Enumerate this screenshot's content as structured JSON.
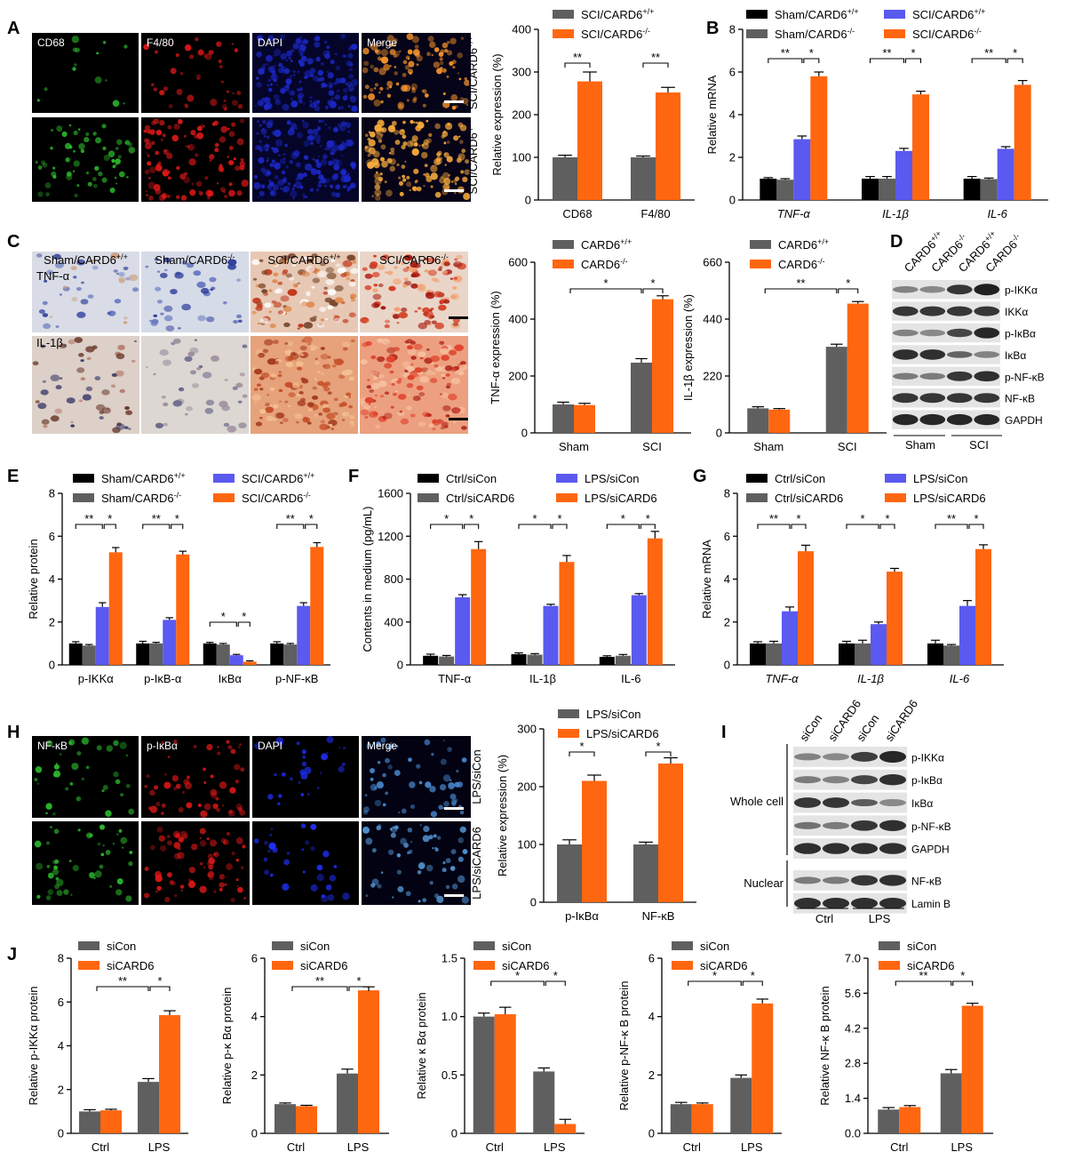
{
  "colors": {
    "black": "#000000",
    "gray": "#5f5f5f",
    "blue": "#5a5af0",
    "orange": "#ff6610",
    "green": "#2ec12e",
    "red": "#e01818",
    "dapi": "#1c28c8"
  },
  "panels": {
    "A": "A",
    "B": "B",
    "C": "C",
    "D": "D",
    "E": "E",
    "F": "F",
    "G": "G",
    "H": "H",
    "I": "I",
    "J": "J"
  },
  "micrographs": {
    "A": {
      "channels": [
        "CD68",
        "F4/80",
        "DAPI",
        "Merge"
      ],
      "rows": [
        "SCI/CARD6+/+",
        "SCI/CARD6-/-"
      ]
    },
    "C": {
      "columns": [
        "Sham/CARD6+/+",
        "Sham/CARD6-/-",
        "SCI/CARD6+/+",
        "SCI/CARD6-/-"
      ],
      "rows": [
        "TNF-α",
        "IL-1β"
      ]
    },
    "H": {
      "channels": [
        "NF-κB",
        "p-IκBα",
        "DAPI",
        "Merge"
      ],
      "rows": [
        "LPS/siCon",
        "LPS/siCARD6"
      ]
    }
  },
  "blots": {
    "D": {
      "lanes": [
        "CARD6+/+",
        "CARD6-/-",
        "CARD6+/+",
        "CARD6-/-"
      ],
      "bands": [
        "p-IKKα",
        "IKKα",
        "p-IκBα",
        "IκBα",
        "p-NF-κB",
        "NF-κB",
        "GAPDH"
      ],
      "groups": [
        "Sham",
        "SCI"
      ]
    },
    "I": {
      "lanes": [
        "siCon",
        "siCARD6",
        "siCon",
        "siCARD6"
      ],
      "bands": [
        "p-IKKα",
        "p-IκBα",
        "IκBα",
        "p-NF-κB",
        "GAPDH",
        "NF-κB",
        "Lamin B"
      ],
      "fractions": [
        "Whole cell",
        "Nuclear"
      ],
      "groups": [
        "Ctrl",
        "LPS"
      ]
    }
  },
  "chart_data": [
    {
      "id": "A",
      "type": "bar",
      "categories": [
        "CD68",
        "F4/80"
      ],
      "series": [
        {
          "name": "SCI/CARD6+/+",
          "values": [
            100,
            100
          ],
          "errors": [
            5,
            3
          ]
        },
        {
          "name": "SCI/CARD6-/-",
          "values": [
            278,
            252
          ],
          "errors": [
            22,
            12
          ]
        }
      ],
      "ylabel": "Relative expression (%)",
      "ylim": [
        0,
        400
      ],
      "yticks": [
        0,
        100,
        200,
        300,
        400
      ],
      "annotations": [
        "**",
        "**"
      ]
    },
    {
      "id": "B",
      "type": "bar",
      "categories": [
        "TNF-α",
        "IL-1β",
        "IL-6"
      ],
      "series": [
        {
          "name": "Sham/CARD6+/+",
          "values": [
            1.0,
            1.0,
            1.0
          ],
          "errors": [
            0.05,
            0.1,
            0.1
          ]
        },
        {
          "name": "Sham/CARD6-/-",
          "values": [
            0.95,
            1.0,
            0.98
          ],
          "errors": [
            0.05,
            0.1,
            0.05
          ]
        },
        {
          "name": "SCI/CARD6+/+",
          "values": [
            2.85,
            2.3,
            2.4
          ],
          "errors": [
            0.15,
            0.12,
            0.1
          ]
        },
        {
          "name": "SCI/CARD6-/-",
          "values": [
            5.8,
            4.95,
            5.4
          ],
          "errors": [
            0.2,
            0.15,
            0.2
          ]
        }
      ],
      "ylabel": "Relative mRNA",
      "ylim": [
        0,
        8
      ],
      "yticks": [
        0,
        2,
        4,
        6,
        8
      ],
      "annotations": [
        "**",
        "*",
        "**",
        "*",
        "**",
        "*"
      ]
    },
    {
      "id": "C1",
      "type": "bar",
      "categories": [
        "Sham",
        "SCI"
      ],
      "series": [
        {
          "name": "CARD6+/+",
          "values": [
            100,
            247
          ],
          "errors": [
            8,
            14
          ]
        },
        {
          "name": "CARD6-/-",
          "values": [
            98,
            470
          ],
          "errors": [
            6,
            12
          ]
        }
      ],
      "ylabel": "TNF-α expression (%)",
      "ylim": [
        0,
        600
      ],
      "yticks": [
        0,
        200,
        400,
        600
      ],
      "annotations": [
        "*",
        "*"
      ]
    },
    {
      "id": "C2",
      "type": "bar",
      "categories": [
        "Sham",
        "SCI"
      ],
      "series": [
        {
          "name": "CARD6+/+",
          "values": [
            95,
            333
          ],
          "errors": [
            6,
            10
          ]
        },
        {
          "name": "CARD6-/-",
          "values": [
            90,
            500
          ],
          "errors": [
            4,
            8
          ]
        }
      ],
      "ylabel": "IL-1β expression (%)",
      "ylim": [
        0,
        660
      ],
      "yticks": [
        0,
        220,
        440,
        660
      ],
      "annotations": [
        "**",
        "*"
      ]
    },
    {
      "id": "E",
      "type": "bar",
      "categories": [
        "p-IKKα",
        "p-IκB-α",
        "IκBα",
        "p-NF-κB"
      ],
      "series": [
        {
          "name": "Sham/CARD6+/+",
          "values": [
            1.0,
            1.0,
            1.0,
            1.0
          ],
          "errors": [
            0.08,
            0.1,
            0.05,
            0.08
          ]
        },
        {
          "name": "Sham/CARD6-/-",
          "values": [
            0.9,
            1.0,
            0.95,
            0.95
          ],
          "errors": [
            0.05,
            0.05,
            0.05,
            0.05
          ]
        },
        {
          "name": "SCI/CARD6+/+",
          "values": [
            2.7,
            2.1,
            0.45,
            2.75
          ],
          "errors": [
            0.2,
            0.1,
            0.04,
            0.15
          ]
        },
        {
          "name": "SCI/CARD6-/-",
          "values": [
            5.25,
            5.15,
            0.15,
            5.5
          ],
          "errors": [
            0.22,
            0.15,
            0.04,
            0.2
          ]
        }
      ],
      "ylabel": "Relative protein",
      "ylim": [
        0,
        8
      ],
      "yticks": [
        0,
        2,
        4,
        6,
        8
      ],
      "annotations": [
        "**",
        "*",
        "**",
        "*",
        "*",
        "*",
        "**",
        "*"
      ]
    },
    {
      "id": "F",
      "type": "bar",
      "categories": [
        "TNF-α",
        "IL-1β",
        "IL-6"
      ],
      "series": [
        {
          "name": "Ctrl/siCon",
          "values": [
            85,
            100,
            75
          ],
          "errors": [
            15,
            12,
            10
          ]
        },
        {
          "name": "Ctrl/siCARD6",
          "values": [
            78,
            95,
            85
          ],
          "errors": [
            10,
            10,
            12
          ]
        },
        {
          "name": "LPS/siCon",
          "values": [
            630,
            550,
            650
          ],
          "errors": [
            25,
            15,
            15
          ]
        },
        {
          "name": "LPS/siCARD6",
          "values": [
            1080,
            960,
            1180
          ],
          "errors": [
            70,
            60,
            65
          ]
        }
      ],
      "ylabel": "Contents in medium (pg/mL)",
      "ylim": [
        0,
        1600
      ],
      "yticks": [
        0,
        400,
        800,
        1200,
        1600
      ],
      "annotations": [
        "*",
        "*",
        "*",
        "*",
        "*",
        "*"
      ]
    },
    {
      "id": "G",
      "type": "bar",
      "categories": [
        "TNF-α",
        "IL-1β",
        "IL-6"
      ],
      "series": [
        {
          "name": "Ctrl/siCon",
          "values": [
            1.0,
            1.0,
            1.0
          ],
          "errors": [
            0.08,
            0.1,
            0.15
          ]
        },
        {
          "name": "Ctrl/siCARD6",
          "values": [
            1.0,
            1.0,
            0.9
          ],
          "errors": [
            0.1,
            0.15,
            0.05
          ]
        },
        {
          "name": "LPS/siCon",
          "values": [
            2.5,
            1.9,
            2.75
          ],
          "errors": [
            0.2,
            0.1,
            0.25
          ]
        },
        {
          "name": "LPS/siCARD6",
          "values": [
            5.3,
            4.35,
            5.4
          ],
          "errors": [
            0.28,
            0.15,
            0.2
          ]
        }
      ],
      "ylabel": "Relative mRNA",
      "ylim": [
        0,
        8
      ],
      "yticks": [
        0,
        2,
        4,
        6,
        8
      ],
      "annotations": [
        "**",
        "*",
        "*",
        "*",
        "**",
        "*"
      ]
    },
    {
      "id": "H",
      "type": "bar",
      "categories": [
        "p-IκBα",
        "NF-κB"
      ],
      "series": [
        {
          "name": "LPS/siCon",
          "values": [
            100,
            100
          ],
          "errors": [
            8,
            4
          ]
        },
        {
          "name": "LPS/siCARD6",
          "values": [
            210,
            240
          ],
          "errors": [
            10,
            10
          ]
        }
      ],
      "ylabel": "Relative expression (%)",
      "ylim": [
        0,
        300
      ],
      "yticks": [
        0,
        100,
        200,
        300
      ],
      "annotations": [
        "*",
        "*"
      ]
    },
    {
      "id": "J1",
      "type": "bar",
      "categories": [
        "Ctrl",
        "LPS"
      ],
      "series": [
        {
          "name": "siCon",
          "values": [
            1.0,
            2.35
          ],
          "errors": [
            0.08,
            0.15
          ]
        },
        {
          "name": "siCARD6",
          "values": [
            1.05,
            5.4
          ],
          "errors": [
            0.05,
            0.2
          ]
        }
      ],
      "ylabel": "Relative p-IKKα  protein",
      "ylim": [
        0,
        8
      ],
      "yticks": [
        0,
        2,
        4,
        6,
        8
      ],
      "annotations": [
        "**",
        "*"
      ]
    },
    {
      "id": "J2",
      "type": "bar",
      "categories": [
        "Ctrl",
        "LPS"
      ],
      "series": [
        {
          "name": "siCon",
          "values": [
            1.0,
            2.05
          ],
          "errors": [
            0.04,
            0.15
          ]
        },
        {
          "name": "siCARD6",
          "values": [
            0.93,
            4.9
          ],
          "errors": [
            0.03,
            0.12
          ]
        }
      ],
      "ylabel": "Relative p-κ Bα protein",
      "ylim": [
        0,
        6
      ],
      "yticks": [
        0,
        2,
        4,
        6
      ],
      "annotations": [
        "**",
        "*"
      ]
    },
    {
      "id": "J3",
      "type": "bar",
      "categories": [
        "Ctrl",
        "LPS"
      ],
      "series": [
        {
          "name": "siCon",
          "values": [
            1.0,
            0.53
          ],
          "errors": [
            0.03,
            0.03
          ]
        },
        {
          "name": "siCARD6",
          "values": [
            1.02,
            0.08
          ],
          "errors": [
            0.06,
            0.04
          ]
        }
      ],
      "ylabel": "Relative κ Bα protein",
      "ylim": [
        0,
        1.5
      ],
      "yticks": [
        0,
        0.5,
        1.0,
        1.5
      ],
      "annotations": [
        "*",
        "*"
      ]
    },
    {
      "id": "J4",
      "type": "bar",
      "categories": [
        "Ctrl",
        "LPS"
      ],
      "series": [
        {
          "name": "siCon",
          "values": [
            1.0,
            1.9
          ],
          "errors": [
            0.06,
            0.1
          ]
        },
        {
          "name": "siCARD6",
          "values": [
            1.0,
            4.45
          ],
          "errors": [
            0.04,
            0.15
          ]
        }
      ],
      "ylabel": "Relative p-NF-κ B protein",
      "ylim": [
        0,
        6
      ],
      "yticks": [
        0,
        2,
        4,
        6
      ],
      "annotations": [
        "*",
        "*"
      ]
    },
    {
      "id": "J5",
      "type": "bar",
      "categories": [
        "Ctrl",
        "LPS"
      ],
      "series": [
        {
          "name": "siCon",
          "values": [
            0.95,
            2.4
          ],
          "errors": [
            0.08,
            0.15
          ]
        },
        {
          "name": "siCARD6",
          "values": [
            1.05,
            5.1
          ],
          "errors": [
            0.06,
            0.1
          ]
        }
      ],
      "ylabel": "Relative NF-κ B protein",
      "ylim": [
        0,
        7.0
      ],
      "yticks": [
        0.0,
        1.4,
        2.8,
        4.2,
        5.6,
        7.0
      ],
      "annotations": [
        "**",
        "*"
      ]
    }
  ]
}
